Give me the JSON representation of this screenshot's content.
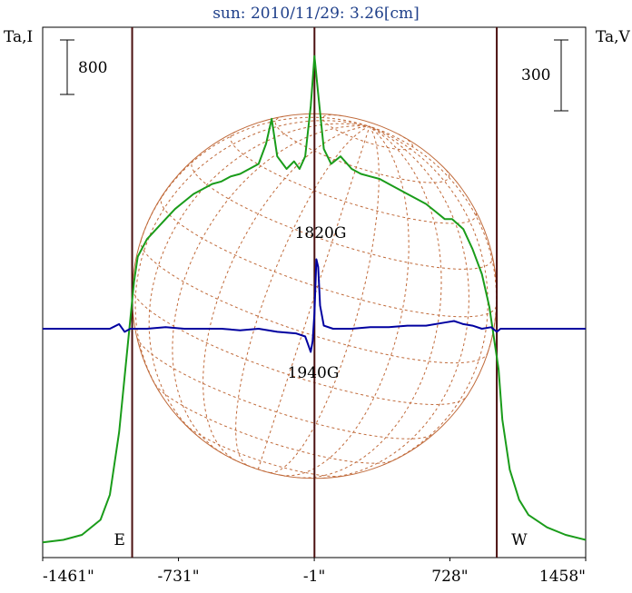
{
  "chart_data": {
    "type": "line",
    "title": "sun: 2010/11/29: 3.26[cm]",
    "left_axis_label": "Ta,I",
    "right_axis_label": "Ta,V",
    "left_scale_bar_label": "800",
    "right_scale_bar_label": "300",
    "x_tick_labels": [
      "-1461\"",
      "-731\"",
      "-1\"",
      "728\"",
      "1458\""
    ],
    "x_ticks": [
      -1461,
      -731,
      -1,
      728,
      1458
    ],
    "xlim": [
      -1461,
      1458
    ],
    "limb_markers": [
      {
        "label": "E",
        "x": -980
      },
      {
        "label": "W",
        "x": 980
      }
    ],
    "center_marker_x": 0,
    "annotations": [
      {
        "text": "1820G",
        "x": 15,
        "y_vertical_relative": 1.0
      },
      {
        "text": "1940G",
        "x": -15,
        "y_vertical_relative": -1.0
      }
    ],
    "series": [
      {
        "name": "",
        "axis": "left",
        "color": "#1a9c1a",
        "points": [
          [
            -1461,
            0.01
          ],
          [
            -1350,
            0.02
          ],
          [
            -1250,
            0.04
          ],
          [
            -1150,
            0.1
          ],
          [
            -1100,
            0.2
          ],
          [
            -1050,
            0.45
          ],
          [
            -1010,
            0.75
          ],
          [
            -990,
            0.9
          ],
          [
            -970,
            1.05
          ],
          [
            -950,
            1.15
          ],
          [
            -900,
            1.22
          ],
          [
            -850,
            1.26
          ],
          [
            -800,
            1.3
          ],
          [
            -750,
            1.34
          ],
          [
            -700,
            1.37
          ],
          [
            -650,
            1.4
          ],
          [
            -600,
            1.42
          ],
          [
            -550,
            1.44
          ],
          [
            -500,
            1.45
          ],
          [
            -450,
            1.47
          ],
          [
            -400,
            1.48
          ],
          [
            -350,
            1.5
          ],
          [
            -300,
            1.52
          ],
          [
            -260,
            1.6
          ],
          [
            -230,
            1.7
          ],
          [
            -200,
            1.55
          ],
          [
            -150,
            1.5
          ],
          [
            -110,
            1.53
          ],
          [
            -80,
            1.5
          ],
          [
            -50,
            1.55
          ],
          [
            -20,
            1.75
          ],
          [
            0,
            1.95
          ],
          [
            20,
            1.8
          ],
          [
            50,
            1.58
          ],
          [
            90,
            1.52
          ],
          [
            140,
            1.55
          ],
          [
            200,
            1.5
          ],
          [
            250,
            1.48
          ],
          [
            300,
            1.47
          ],
          [
            350,
            1.46
          ],
          [
            400,
            1.44
          ],
          [
            450,
            1.42
          ],
          [
            500,
            1.4
          ],
          [
            550,
            1.38
          ],
          [
            600,
            1.36
          ],
          [
            650,
            1.33
          ],
          [
            700,
            1.3
          ],
          [
            740,
            1.3
          ],
          [
            770,
            1.28
          ],
          [
            800,
            1.26
          ],
          [
            850,
            1.18
          ],
          [
            900,
            1.08
          ],
          [
            940,
            0.95
          ],
          [
            970,
            0.8
          ],
          [
            990,
            0.7
          ],
          [
            1010,
            0.5
          ],
          [
            1050,
            0.3
          ],
          [
            1100,
            0.18
          ],
          [
            1150,
            0.12
          ],
          [
            1250,
            0.07
          ],
          [
            1350,
            0.04
          ],
          [
            1458,
            0.02
          ]
        ]
      },
      {
        "name": "",
        "axis": "right",
        "color": "#0000a0",
        "points": [
          [
            -1461,
            0.0
          ],
          [
            -1100,
            0.0
          ],
          [
            -1050,
            0.03
          ],
          [
            -1020,
            -0.02
          ],
          [
            -990,
            0.0
          ],
          [
            -900,
            0.0
          ],
          [
            -800,
            0.01
          ],
          [
            -700,
            0.0
          ],
          [
            -600,
            0.0
          ],
          [
            -500,
            0.0
          ],
          [
            -400,
            -0.01
          ],
          [
            -300,
            0.0
          ],
          [
            -200,
            -0.02
          ],
          [
            -100,
            -0.03
          ],
          [
            -50,
            -0.05
          ],
          [
            -20,
            -0.15
          ],
          [
            -10,
            -0.08
          ],
          [
            0,
            0.1
          ],
          [
            10,
            0.45
          ],
          [
            20,
            0.4
          ],
          [
            30,
            0.15
          ],
          [
            50,
            0.02
          ],
          [
            100,
            0.0
          ],
          [
            200,
            0.0
          ],
          [
            300,
            0.01
          ],
          [
            400,
            0.01
          ],
          [
            500,
            0.02
          ],
          [
            600,
            0.02
          ],
          [
            700,
            0.04
          ],
          [
            750,
            0.05
          ],
          [
            800,
            0.03
          ],
          [
            850,
            0.02
          ],
          [
            900,
            0.0
          ],
          [
            950,
            0.01
          ],
          [
            980,
            -0.02
          ],
          [
            1000,
            0.0
          ],
          [
            1100,
            0.0
          ],
          [
            1458,
            0.0
          ]
        ]
      }
    ]
  }
}
